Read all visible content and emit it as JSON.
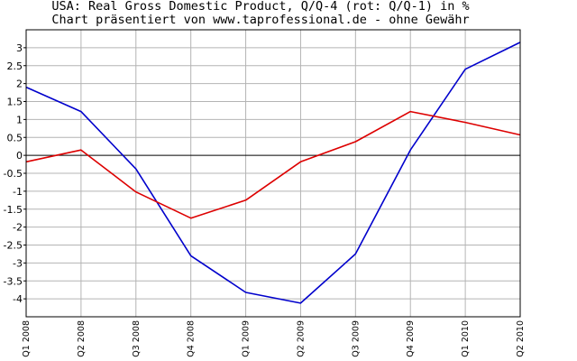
{
  "chart_data": {
    "type": "line",
    "title": "USA: Real Gross Domestic Product, Q/Q-4 (rot: Q/Q-1) in %",
    "subtitle": "Chart präsentiert von www.taprofessional.de - ohne Gewähr",
    "categories": [
      "Q1 2008",
      "Q2 2008",
      "Q3 2008",
      "Q4 2008",
      "Q1 2009",
      "Q2 2009",
      "Q3 2009",
      "Q4 2009",
      "Q1 2010",
      "Q2 2010"
    ],
    "ylim": [
      -4.5,
      3.5
    ],
    "yticks": [
      "3",
      "2.5",
      "2",
      "1.5",
      "1",
      "0.5",
      "0",
      "-0.5",
      "-1",
      "-1.5",
      "-2",
      "-2.5",
      "-3",
      "-3.5",
      "-4"
    ],
    "grid": true,
    "series": [
      {
        "key": "qq4",
        "color": "#0000cc",
        "values": [
          1.9,
          1.22,
          -0.38,
          -2.8,
          -3.82,
          -4.12,
          -2.75,
          0.15,
          2.4,
          3.15
        ]
      },
      {
        "key": "qq1",
        "color": "#dd0000",
        "values": [
          -0.18,
          0.15,
          -1.02,
          -1.75,
          -1.25,
          -0.18,
          0.38,
          1.22,
          0.92,
          0.57
        ]
      }
    ]
  }
}
